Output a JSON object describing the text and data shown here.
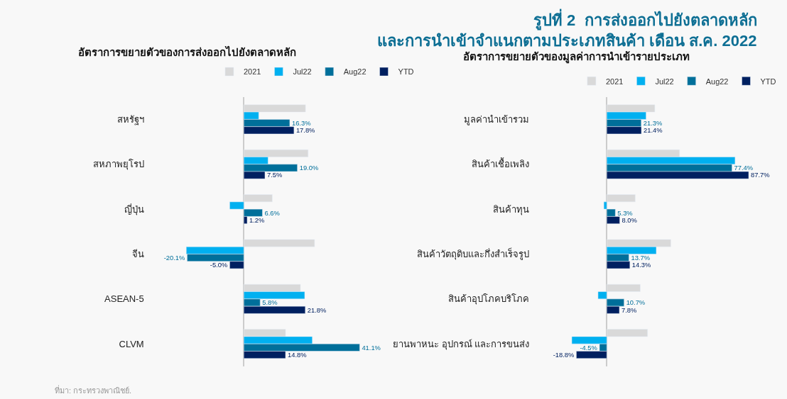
{
  "chart_data": [
    {
      "type": "bar",
      "orientation": "horizontal",
      "subtitle": "อัตราการขยายตัวของการส่งออกไปยังตลาดหลัก",
      "legend": "top",
      "categories": [
        "สหรัฐฯ",
        "สหภาพยุโรป",
        "ญี่ปุ่น",
        "จีน",
        "ASEAN-5",
        "CLVM"
      ],
      "series": [
        {
          "name": "2021",
          "color": "#d9d9d9",
          "values": [
            21.9,
            22.8,
            10.1,
            25.1,
            20.1,
            14.8
          ]
        },
        {
          "name": "Jul22",
          "color": "#00b0f0",
          "values": [
            5.3,
            8.6,
            -5.0,
            -20.4,
            21.6,
            24.3
          ]
        },
        {
          "name": "Aug22",
          "color": "#006f9a",
          "values": [
            16.3,
            19.0,
            6.6,
            -20.1,
            5.8,
            41.1
          ],
          "value_labels": [
            "16.3%",
            "19.0%",
            "6.6%",
            "-20.1%",
            "5.8%",
            "41.1%"
          ]
        },
        {
          "name": "YTD",
          "color": "#002060",
          "values": [
            17.8,
            7.5,
            1.2,
            -5.0,
            21.8,
            14.8
          ],
          "value_labels": [
            "17.8%",
            "7.5%",
            "1.2%",
            "-5.0%",
            "21.8%",
            "14.8%"
          ]
        }
      ],
      "annotations": [
        "ที่มา: กระทรวงพาณิชย์."
      ]
    },
    {
      "type": "bar",
      "orientation": "horizontal",
      "title": "รูปที่ 2  การส่งออกไปยังตลาดหลัก\nและการนำเข้าจำแนกตามประเภทสินค้า เดือน ส.ค. 2022",
      "subtitle": "อัตราการขยายตัวของมูลค่าการนำเข้ารายประเภท",
      "legend": "top",
      "categories": [
        "มูลค่านำเข้ารวม",
        "สินค้าเชื้อเพลิง",
        "สินค้าทุน",
        "สินค้าวัตถุดิบและกึ่งสำเร็จรูป",
        "สินค้าอุปโภคบริโภค",
        "ยานพาหนะ อุปกรณ์ และการขนส่ง"
      ],
      "series": [
        {
          "name": "2021",
          "color": "#d9d9d9",
          "values": [
            29.7,
            45.0,
            17.6,
            39.6,
            20.7,
            25.2
          ]
        },
        {
          "name": "Jul22",
          "color": "#00b0f0",
          "values": [
            24.3,
            79.3,
            -1.8,
            30.6,
            -5.4,
            -21.6
          ]
        },
        {
          "name": "Aug22",
          "color": "#006f9a",
          "values": [
            21.3,
            77.4,
            5.3,
            13.7,
            10.7,
            -4.5
          ],
          "value_labels": [
            "21.3%",
            "77.4%",
            "5.3%",
            "13.7%",
            "10.7%",
            "-4.5%"
          ]
        },
        {
          "name": "YTD",
          "color": "#002060",
          "values": [
            21.4,
            87.7,
            8.0,
            14.3,
            7.8,
            -18.8
          ],
          "value_labels": [
            "21.4%",
            "87.7%",
            "8.0%",
            "14.3%",
            "7.8%",
            "-18.8%"
          ]
        }
      ]
    }
  ]
}
